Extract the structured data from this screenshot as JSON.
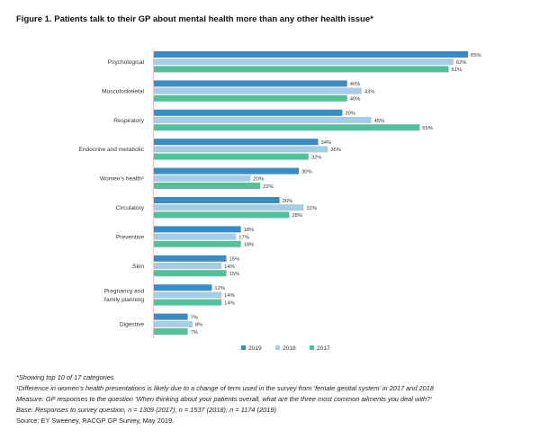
{
  "title": "Figure 1. Patients talk to their GP about mental health more than any other health issue*",
  "chart_data": {
    "type": "bar",
    "orientation": "horizontal",
    "categories": [
      [
        "Psychological"
      ],
      [
        "Musculoskeletal"
      ],
      [
        "Respiratory"
      ],
      [
        "Endocrine and metabolic"
      ],
      [
        "Women's health¹"
      ],
      [
        "Circulatory"
      ],
      [
        "Preventive"
      ],
      [
        "Skin"
      ],
      [
        "Pregnancy and",
        "family planning"
      ],
      [
        "Digestive"
      ]
    ],
    "series": [
      {
        "name": "2019",
        "color": "#3a8dc4",
        "values": [
          65,
          40,
          39,
          34,
          30,
          26,
          18,
          15,
          12,
          7
        ]
      },
      {
        "name": "2018",
        "color": "#a7cce6",
        "values": [
          62,
          43,
          45,
          36,
          20,
          31,
          17,
          14,
          14,
          8
        ]
      },
      {
        "name": "2017",
        "color": "#52c19a",
        "values": [
          61,
          40,
          55,
          32,
          22,
          28,
          18,
          15,
          14,
          7
        ]
      }
    ],
    "value_suffix": "%",
    "xlim": [
      0,
      65
    ],
    "legend_position": "bottom",
    "grid": false
  },
  "notes": [
    "*Showing top 10 of 17 categories",
    "¹Difference in women's health presentations is likely due to a change of term used in the survey from ‘female genital system’ in 2017 and 2018",
    "Measure: GP responses to the question ‘When thinking about your patients overall, what are the three most common ailments you deal with?’",
    "Base: Responses to survey question, n = 1309 (2017); n = 1537 (2018); n = 1174 (2019)",
    "Source: EY Sweeney, RACGP GP Survey, May 2019."
  ]
}
